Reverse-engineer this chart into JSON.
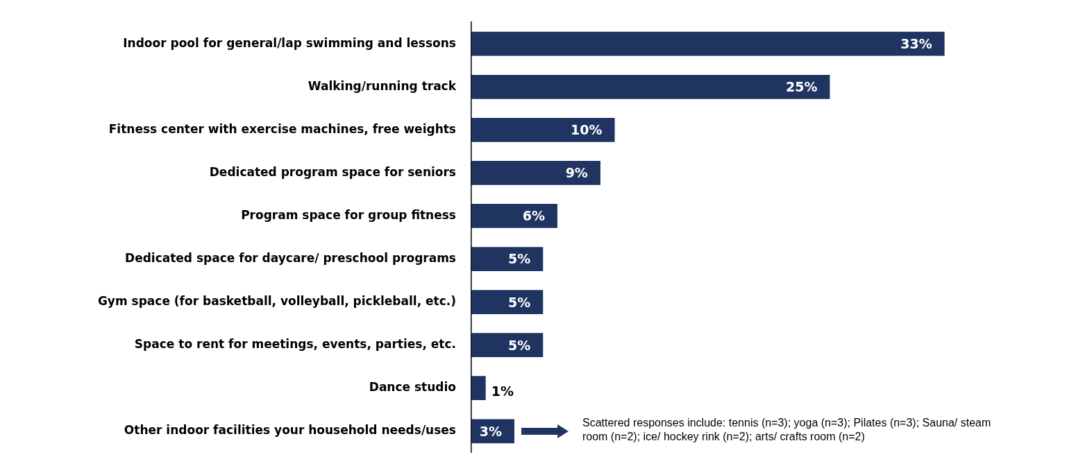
{
  "chart_data": {
    "type": "bar",
    "orientation": "horizontal",
    "categories": [
      "Indoor pool for general/lap swimming and lessons",
      "Walking/running track",
      "Fitness center with exercise machines, free weights",
      "Dedicated program space for seniors",
      "Program space for group fitness",
      "Dedicated space for daycare/ preschool programs",
      "Gym space (for basketball, volleyball, pickleball, etc.)",
      "Space to rent for meetings, events, parties, etc.",
      "Dance studio",
      "Other indoor facilities your household needs/uses"
    ],
    "values": [
      33,
      25,
      10,
      9,
      6,
      5,
      5,
      5,
      1,
      3
    ],
    "value_labels": [
      "33%",
      "25%",
      "10%",
      "9%",
      "6%",
      "5%",
      "5%",
      "5%",
      "1%",
      "3%"
    ],
    "color": "#1f3461",
    "tick_labels": "y",
    "legend": false,
    "annotations": [
      "Scattered responses include: tennis (n=3); yoga (n=3); Pilates (n=3); Sauna/ steam room (n=2); ice/ hockey rink (n=2); arts/ crafts room (n=2)"
    ]
  }
}
